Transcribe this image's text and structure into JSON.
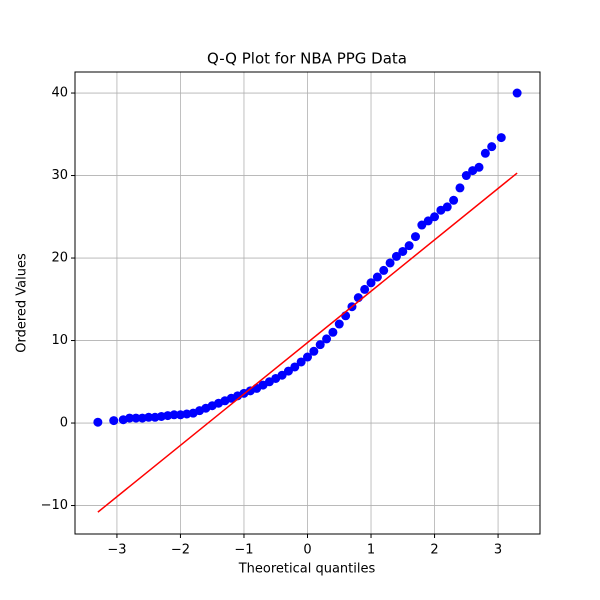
{
  "chart_data": {
    "type": "scatter",
    "title": "Q-Q Plot for NBA PPG Data",
    "x_label": "Theoretical quantiles",
    "y_label": "Ordered Values",
    "xlim": [
      -3.66,
      3.66
    ],
    "ylim": [
      -13.45,
      42.55
    ],
    "xticks": [
      {
        "value": -3,
        "label": "−3"
      },
      {
        "value": -2,
        "label": "−2"
      },
      {
        "value": -1,
        "label": "−1"
      },
      0,
      1,
      2,
      3
    ],
    "yticks": [
      {
        "value": -10,
        "label": "−10"
      },
      0,
      10,
      20,
      30,
      40
    ],
    "grid": true,
    "series": [
      {
        "kind": "markers",
        "color": "#0000ff",
        "x": [
          -3.3,
          -3.05,
          -2.9,
          -2.8,
          -2.7,
          -2.6,
          -2.5,
          -2.4,
          -2.3,
          -2.2,
          -2.1,
          -2.0,
          -1.9,
          -1.8,
          -1.7,
          -1.6,
          -1.5,
          -1.4,
          -1.3,
          -1.2,
          -1.1,
          -1.0,
          -0.9,
          -0.8,
          -0.7,
          -0.6,
          -0.5,
          -0.4,
          -0.3,
          -0.2,
          -0.1,
          0.0,
          0.1,
          0.2,
          0.3,
          0.4,
          0.5,
          0.6,
          0.7,
          0.8,
          0.9,
          1.0,
          1.1,
          1.2,
          1.3,
          1.4,
          1.5,
          1.6,
          1.7,
          1.8,
          1.9,
          2.0,
          2.1,
          2.2,
          2.3,
          2.4,
          2.5,
          2.6,
          2.7,
          2.8,
          2.9,
          3.05,
          3.3
        ],
        "values": [
          0.1,
          0.3,
          0.4,
          0.6,
          0.6,
          0.6,
          0.7,
          0.7,
          0.8,
          0.9,
          1.0,
          1.0,
          1.1,
          1.2,
          1.5,
          1.8,
          2.1,
          2.4,
          2.7,
          3.0,
          3.3,
          3.6,
          3.9,
          4.2,
          4.6,
          5.0,
          5.4,
          5.8,
          6.3,
          6.8,
          7.4,
          8.0,
          8.7,
          9.5,
          10.2,
          11.0,
          12.0,
          13.0,
          14.1,
          15.2,
          16.2,
          17.0,
          17.7,
          18.5,
          19.4,
          20.2,
          20.8,
          21.5,
          22.6,
          24.0,
          24.5,
          25.0,
          25.8,
          26.2,
          27.0,
          28.5,
          30.0,
          30.6,
          31.0,
          32.7,
          33.5,
          34.6,
          40.0
        ]
      },
      {
        "kind": "line",
        "color": "#ff0000",
        "x": [
          -3.3,
          3.3
        ],
        "values": [
          -10.8,
          30.3
        ]
      }
    ]
  }
}
